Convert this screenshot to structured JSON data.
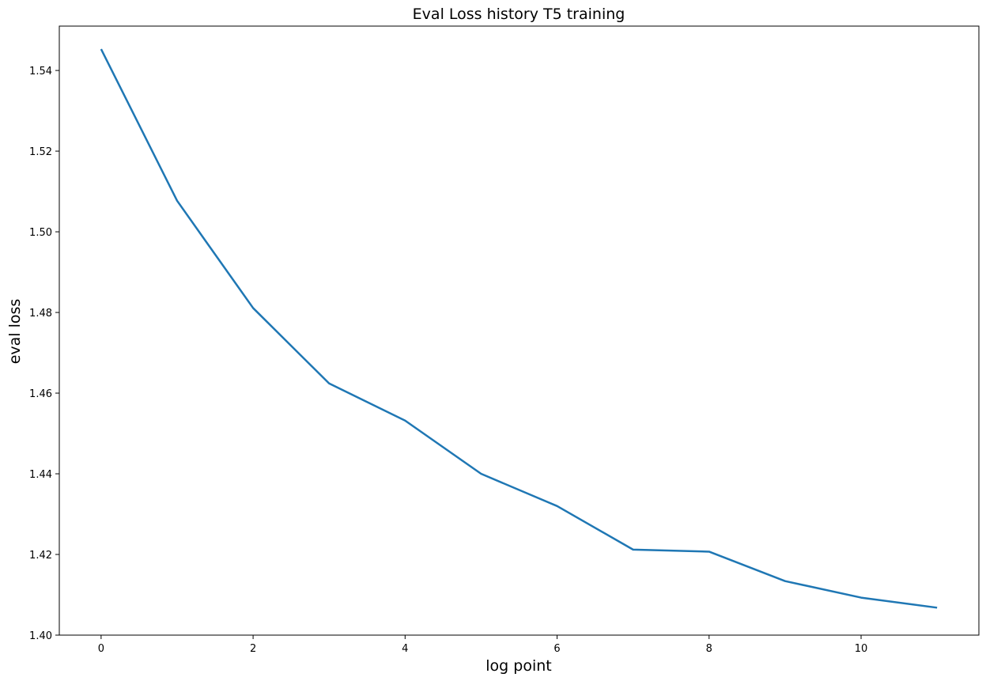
{
  "chart_data": {
    "type": "line",
    "title": "Eval Loss history T5 training",
    "xlabel": "log point",
    "ylabel": "eval loss",
    "xlim": [
      -0.55,
      11.55
    ],
    "ylim": [
      1.4,
      1.551
    ],
    "x_ticks": [
      0,
      2,
      4,
      6,
      8,
      10
    ],
    "x_tick_labels": [
      "0",
      "2",
      "4",
      "6",
      "8",
      "10"
    ],
    "y_ticks": [
      1.4,
      1.42,
      1.44,
      1.46,
      1.48,
      1.5,
      1.52,
      1.54
    ],
    "y_tick_labels": [
      "1.40",
      "1.42",
      "1.44",
      "1.46",
      "1.48",
      "1.50",
      "1.52",
      "1.54"
    ],
    "grid": false,
    "series": [
      {
        "color": "#1f77b4",
        "x": [
          0,
          1,
          2,
          3,
          4,
          5,
          6,
          7,
          8,
          9,
          10,
          11
        ],
        "y": [
          1.5453,
          1.5077,
          1.4811,
          1.4624,
          1.4532,
          1.44,
          1.432,
          1.4212,
          1.4207,
          1.4134,
          1.4093,
          1.4068
        ]
      }
    ]
  }
}
